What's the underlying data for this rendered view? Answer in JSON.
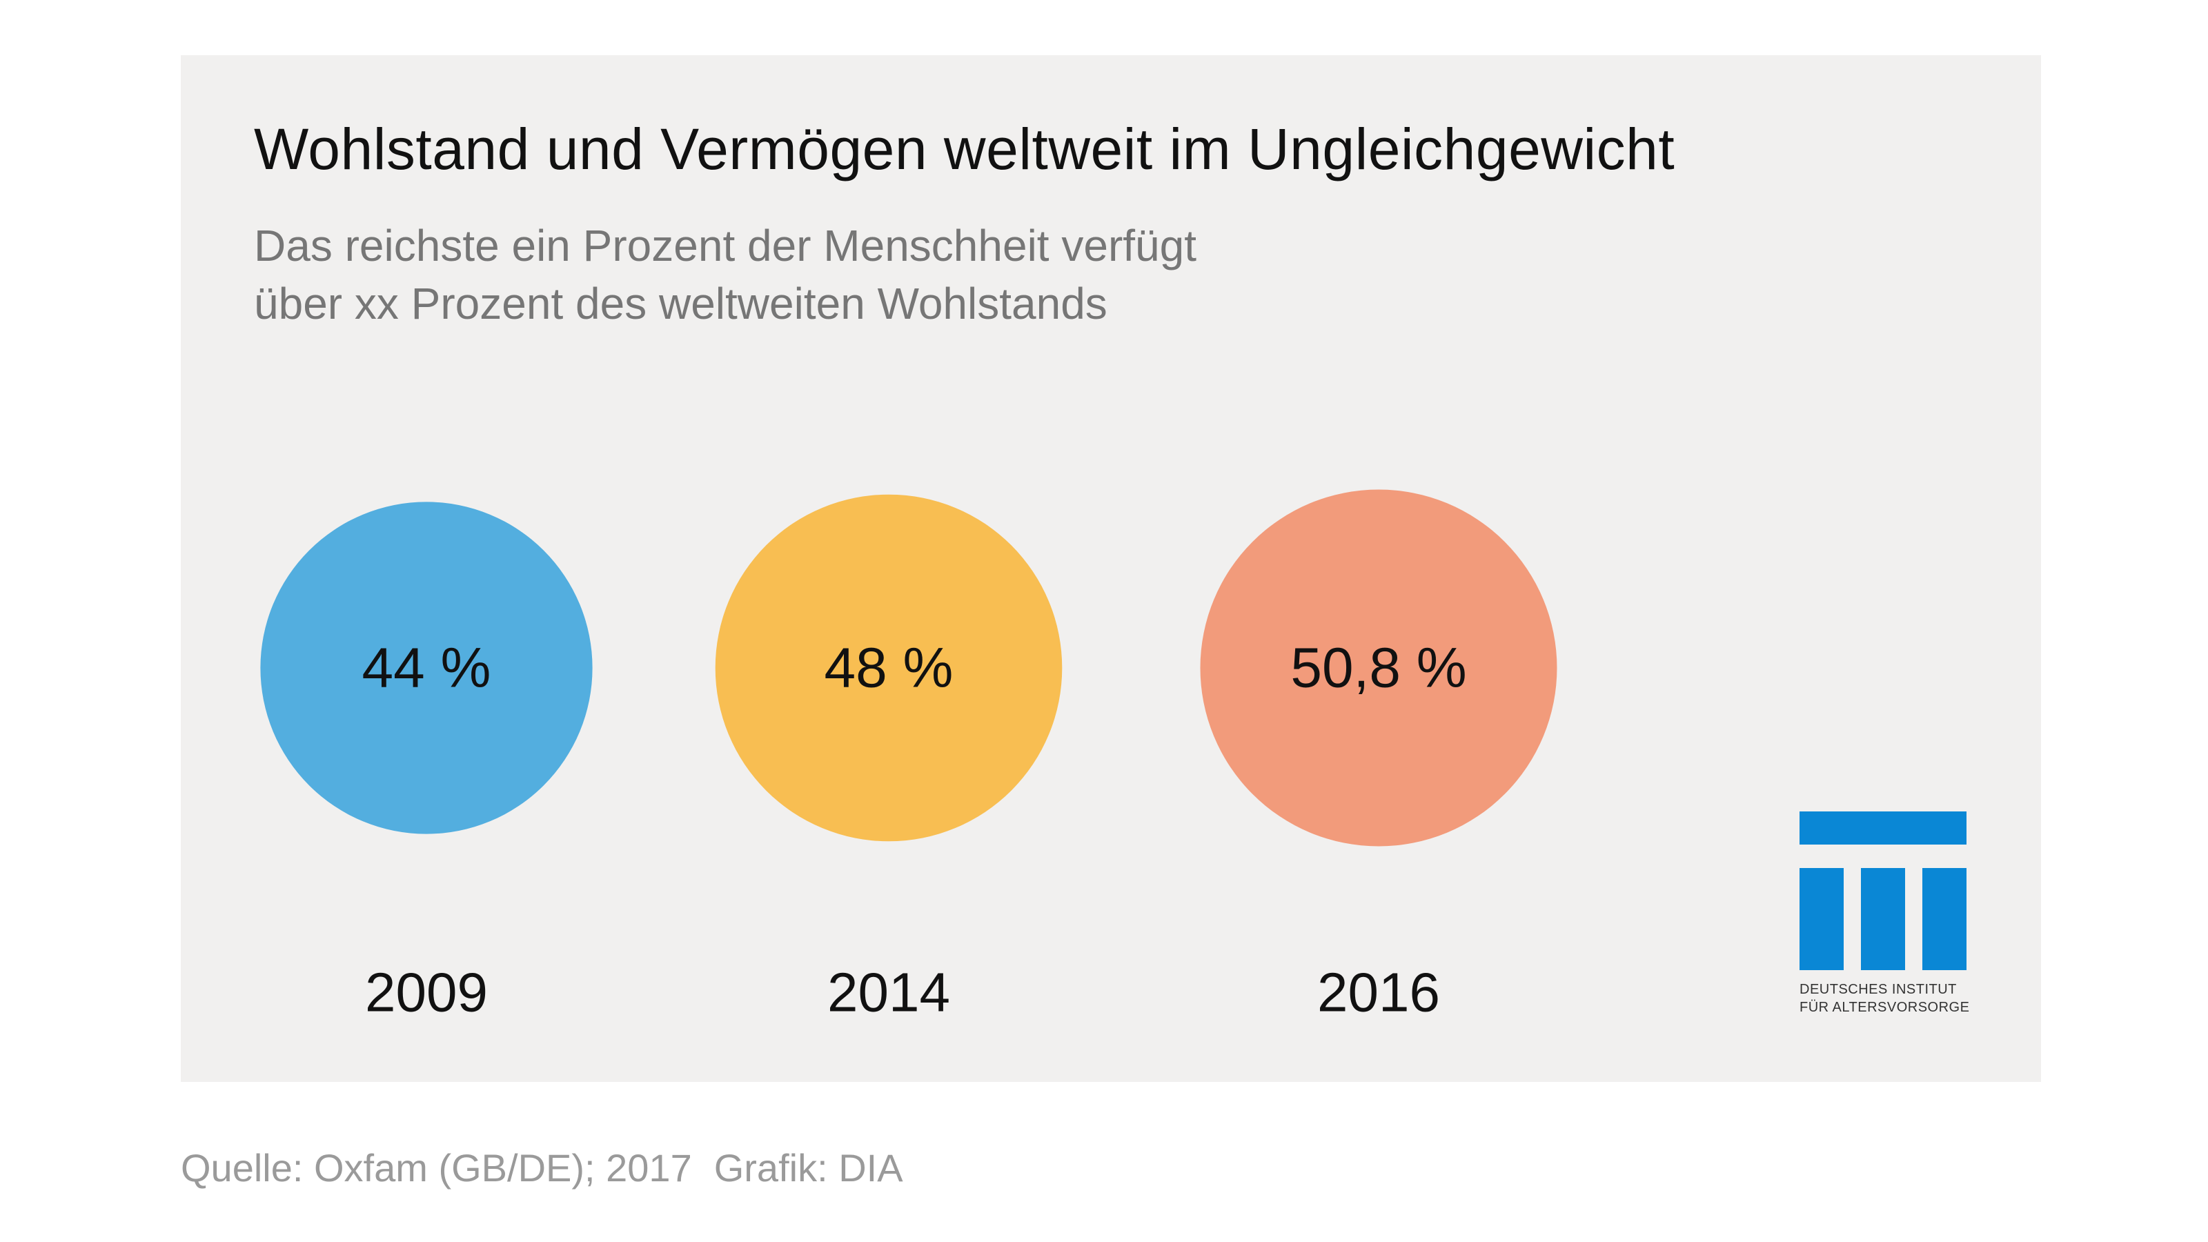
{
  "header": {
    "title": "Wohlstand und Vermögen weltweit im Ungleichgewicht",
    "subtitle_line1": "Das reichste ein Prozent der Menschheit verfügt",
    "subtitle_line2": "über xx Prozent des weltweiten Wohlstands"
  },
  "chart_data": {
    "type": "bubble",
    "title": "Wohlstand und Vermögen weltweit im Ungleichgewicht",
    "subtitle": "Das reichste ein Prozent der Menschheit verfügt über xx Prozent des weltweiten Wohlstands",
    "unit": "%",
    "categories": [
      "2009",
      "2014",
      "2016"
    ],
    "values": [
      44,
      48,
      50.8
    ],
    "value_labels": [
      "44 %",
      "48 %",
      "50,8 %"
    ],
    "colors": [
      "#53aedf",
      "#f8be52",
      "#f29b7b"
    ],
    "legend": "none",
    "grid": false
  },
  "logo": {
    "line1": "DEUTSCHES INSTITUT",
    "line2": "FÜR ALTERSVORSORGE",
    "color": "#0a87d5"
  },
  "footer": {
    "source": "Quelle: Oxfam (GB/DE); 2017",
    "credit": "Grafik: DIA"
  }
}
